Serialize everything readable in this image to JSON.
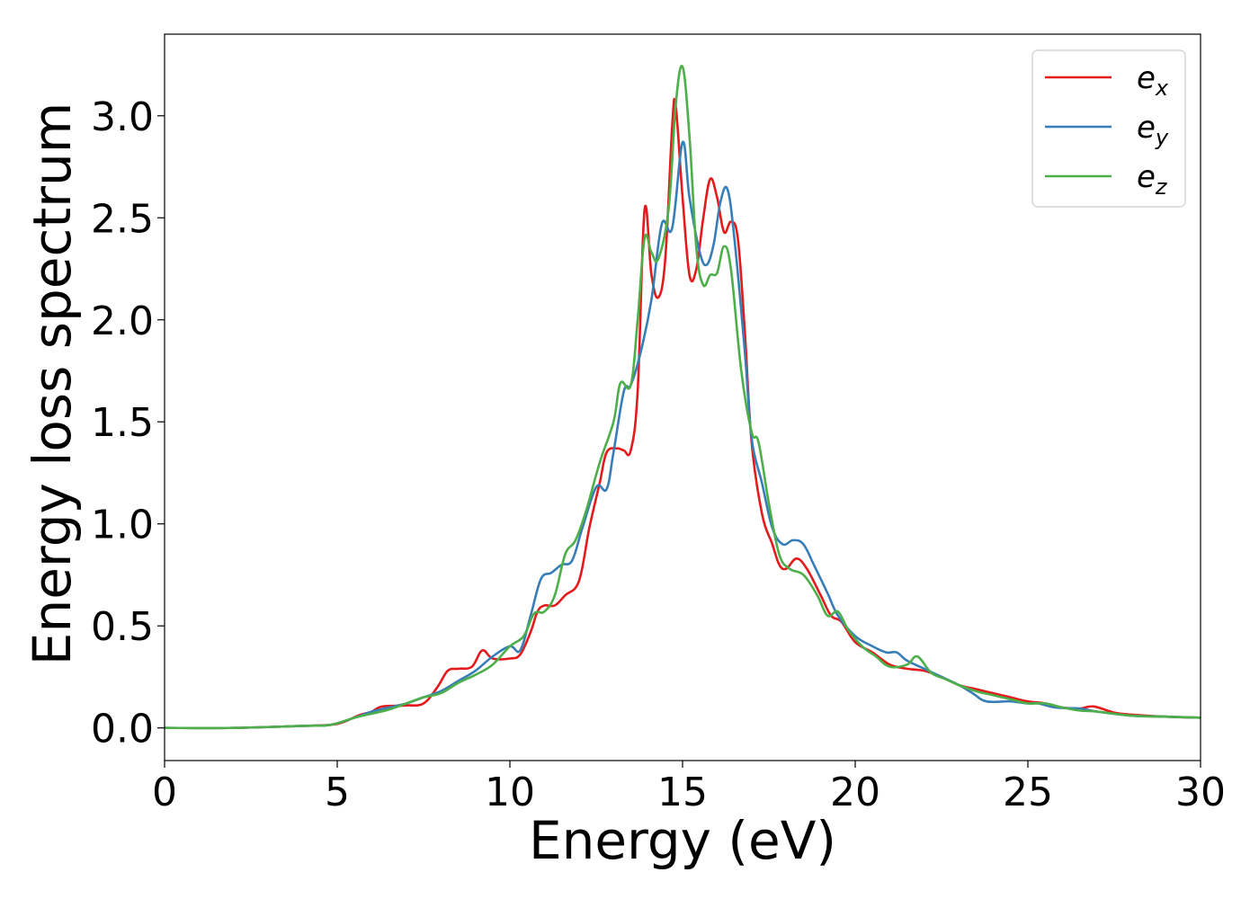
{
  "chart_data": {
    "type": "line",
    "title": "",
    "xlabel": "Energy (eV)",
    "ylabel": "Energy loss spectrum",
    "xlim": [
      0,
      30
    ],
    "ylim": [
      -0.16,
      3.4
    ],
    "xticks": [
      0,
      5,
      10,
      15,
      20,
      25,
      30
    ],
    "xtick_labels": [
      "0",
      "5",
      "10",
      "15",
      "20",
      "25",
      "30"
    ],
    "yticks": [
      0.0,
      0.5,
      1.0,
      1.5,
      2.0,
      2.5,
      3.0
    ],
    "ytick_labels": [
      "0.0",
      "0.5",
      "1.0",
      "1.5",
      "2.0",
      "2.5",
      "3.0"
    ],
    "grid": false,
    "legend_position": "top-right",
    "series": [
      {
        "name": "e_x",
        "label_main": "e",
        "label_sub": "x",
        "color": "#e41a1c",
        "points": [
          [
            0,
            0.0
          ],
          [
            2,
            0.0
          ],
          [
            4,
            0.01
          ],
          [
            4.8,
            0.015
          ],
          [
            5.2,
            0.03
          ],
          [
            5.6,
            0.06
          ],
          [
            6.0,
            0.08
          ],
          [
            6.3,
            0.105
          ],
          [
            7.0,
            0.11
          ],
          [
            7.5,
            0.12
          ],
          [
            7.9,
            0.2
          ],
          [
            8.2,
            0.28
          ],
          [
            8.5,
            0.29
          ],
          [
            8.9,
            0.3
          ],
          [
            9.2,
            0.38
          ],
          [
            9.5,
            0.34
          ],
          [
            10.0,
            0.34
          ],
          [
            10.3,
            0.36
          ],
          [
            10.6,
            0.47
          ],
          [
            10.8,
            0.57
          ],
          [
            11.0,
            0.6
          ],
          [
            11.3,
            0.6
          ],
          [
            11.6,
            0.65
          ],
          [
            12.0,
            0.72
          ],
          [
            12.3,
            0.98
          ],
          [
            12.6,
            1.2
          ],
          [
            12.8,
            1.35
          ],
          [
            13.1,
            1.37
          ],
          [
            13.3,
            1.36
          ],
          [
            13.5,
            1.36
          ],
          [
            13.7,
            1.65
          ],
          [
            13.9,
            2.54
          ],
          [
            14.1,
            2.22
          ],
          [
            14.3,
            2.11
          ],
          [
            14.5,
            2.3
          ],
          [
            14.7,
            2.95
          ],
          [
            14.8,
            3.05
          ],
          [
            15.0,
            2.6
          ],
          [
            15.2,
            2.22
          ],
          [
            15.4,
            2.25
          ],
          [
            15.6,
            2.5
          ],
          [
            15.8,
            2.69
          ],
          [
            16.0,
            2.6
          ],
          [
            16.2,
            2.43
          ],
          [
            16.4,
            2.48
          ],
          [
            16.6,
            2.4
          ],
          [
            16.8,
            1.95
          ],
          [
            17.0,
            1.4
          ],
          [
            17.3,
            1.05
          ],
          [
            17.6,
            0.9
          ],
          [
            17.8,
            0.8
          ],
          [
            18.0,
            0.78
          ],
          [
            18.3,
            0.83
          ],
          [
            18.6,
            0.78
          ],
          [
            19.0,
            0.65
          ],
          [
            19.3,
            0.55
          ],
          [
            19.6,
            0.52
          ],
          [
            20.0,
            0.42
          ],
          [
            20.5,
            0.37
          ],
          [
            21.0,
            0.31
          ],
          [
            21.5,
            0.29
          ],
          [
            22.0,
            0.28
          ],
          [
            22.5,
            0.25
          ],
          [
            23.0,
            0.21
          ],
          [
            23.5,
            0.19
          ],
          [
            24.0,
            0.17
          ],
          [
            24.5,
            0.15
          ],
          [
            25.0,
            0.13
          ],
          [
            25.5,
            0.12
          ],
          [
            26.0,
            0.1
          ],
          [
            26.5,
            0.095
          ],
          [
            26.9,
            0.105
          ],
          [
            27.5,
            0.075
          ],
          [
            28.0,
            0.065
          ],
          [
            29.0,
            0.055
          ],
          [
            30.0,
            0.05
          ]
        ]
      },
      {
        "name": "e_y",
        "label_main": "e",
        "label_sub": "y",
        "color": "#377eb8",
        "points": [
          [
            0,
            0.0
          ],
          [
            2,
            0.0
          ],
          [
            4,
            0.01
          ],
          [
            4.8,
            0.015
          ],
          [
            5.5,
            0.05
          ],
          [
            6.0,
            0.08
          ],
          [
            6.5,
            0.1
          ],
          [
            7.0,
            0.12
          ],
          [
            7.5,
            0.15
          ],
          [
            8.0,
            0.18
          ],
          [
            8.5,
            0.23
          ],
          [
            9.0,
            0.28
          ],
          [
            9.5,
            0.35
          ],
          [
            10.0,
            0.4
          ],
          [
            10.3,
            0.38
          ],
          [
            10.6,
            0.55
          ],
          [
            10.9,
            0.73
          ],
          [
            11.2,
            0.76
          ],
          [
            11.5,
            0.8
          ],
          [
            11.8,
            0.82
          ],
          [
            12.1,
            0.98
          ],
          [
            12.5,
            1.18
          ],
          [
            12.8,
            1.17
          ],
          [
            13.0,
            1.35
          ],
          [
            13.3,
            1.65
          ],
          [
            13.5,
            1.68
          ],
          [
            13.8,
            1.85
          ],
          [
            14.1,
            2.1
          ],
          [
            14.4,
            2.47
          ],
          [
            14.7,
            2.45
          ],
          [
            15.0,
            2.87
          ],
          [
            15.2,
            2.6
          ],
          [
            15.5,
            2.33
          ],
          [
            15.7,
            2.27
          ],
          [
            15.9,
            2.37
          ],
          [
            16.1,
            2.58
          ],
          [
            16.3,
            2.64
          ],
          [
            16.5,
            2.4
          ],
          [
            16.8,
            1.85
          ],
          [
            17.0,
            1.42
          ],
          [
            17.3,
            1.2
          ],
          [
            17.6,
            0.98
          ],
          [
            17.9,
            0.9
          ],
          [
            18.2,
            0.92
          ],
          [
            18.5,
            0.9
          ],
          [
            18.8,
            0.8
          ],
          [
            19.2,
            0.66
          ],
          [
            19.5,
            0.55
          ],
          [
            20.0,
            0.45
          ],
          [
            20.5,
            0.4
          ],
          [
            20.9,
            0.37
          ],
          [
            21.2,
            0.37
          ],
          [
            21.5,
            0.33
          ],
          [
            22.0,
            0.29
          ],
          [
            22.5,
            0.25
          ],
          [
            23.0,
            0.21
          ],
          [
            23.4,
            0.17
          ],
          [
            23.8,
            0.13
          ],
          [
            24.5,
            0.13
          ],
          [
            25.0,
            0.12
          ],
          [
            25.3,
            0.12
          ],
          [
            25.8,
            0.1
          ],
          [
            26.5,
            0.095
          ],
          [
            27.0,
            0.08
          ],
          [
            28.0,
            0.06
          ],
          [
            29.0,
            0.055
          ],
          [
            30.0,
            0.05
          ]
        ]
      },
      {
        "name": "e_z",
        "label_main": "e",
        "label_sub": "z",
        "color": "#4daf4a",
        "points": [
          [
            0,
            0.0
          ],
          [
            2,
            0.0
          ],
          [
            4,
            0.01
          ],
          [
            4.8,
            0.015
          ],
          [
            5.5,
            0.05
          ],
          [
            6.0,
            0.07
          ],
          [
            6.5,
            0.09
          ],
          [
            7.0,
            0.12
          ],
          [
            7.5,
            0.15
          ],
          [
            8.0,
            0.17
          ],
          [
            8.5,
            0.22
          ],
          [
            9.0,
            0.26
          ],
          [
            9.5,
            0.31
          ],
          [
            10.0,
            0.4
          ],
          [
            10.4,
            0.45
          ],
          [
            10.7,
            0.56
          ],
          [
            11.0,
            0.57
          ],
          [
            11.3,
            0.65
          ],
          [
            11.6,
            0.85
          ],
          [
            11.9,
            0.92
          ],
          [
            12.2,
            1.06
          ],
          [
            12.6,
            1.3
          ],
          [
            13.0,
            1.5
          ],
          [
            13.2,
            1.69
          ],
          [
            13.5,
            1.68
          ],
          [
            13.7,
            2.0
          ],
          [
            13.9,
            2.4
          ],
          [
            14.1,
            2.33
          ],
          [
            14.3,
            2.3
          ],
          [
            14.6,
            2.55
          ],
          [
            14.8,
            3.05
          ],
          [
            15.0,
            3.24
          ],
          [
            15.2,
            2.9
          ],
          [
            15.4,
            2.35
          ],
          [
            15.6,
            2.17
          ],
          [
            15.8,
            2.22
          ],
          [
            16.0,
            2.23
          ],
          [
            16.2,
            2.36
          ],
          [
            16.4,
            2.25
          ],
          [
            16.7,
            1.75
          ],
          [
            17.0,
            1.45
          ],
          [
            17.2,
            1.4
          ],
          [
            17.5,
            1.1
          ],
          [
            17.8,
            0.85
          ],
          [
            18.1,
            0.78
          ],
          [
            18.5,
            0.75
          ],
          [
            18.9,
            0.65
          ],
          [
            19.2,
            0.55
          ],
          [
            19.5,
            0.57
          ],
          [
            19.8,
            0.48
          ],
          [
            20.2,
            0.4
          ],
          [
            20.6,
            0.35
          ],
          [
            21.0,
            0.3
          ],
          [
            21.5,
            0.31
          ],
          [
            21.8,
            0.35
          ],
          [
            22.2,
            0.27
          ],
          [
            22.6,
            0.24
          ],
          [
            23.0,
            0.21
          ],
          [
            23.5,
            0.18
          ],
          [
            24.0,
            0.16
          ],
          [
            24.5,
            0.14
          ],
          [
            25.0,
            0.12
          ],
          [
            25.5,
            0.12
          ],
          [
            26.0,
            0.1
          ],
          [
            26.5,
            0.085
          ],
          [
            27.0,
            0.08
          ],
          [
            28.0,
            0.06
          ],
          [
            29.0,
            0.055
          ],
          [
            30.0,
            0.05
          ]
        ]
      }
    ]
  }
}
